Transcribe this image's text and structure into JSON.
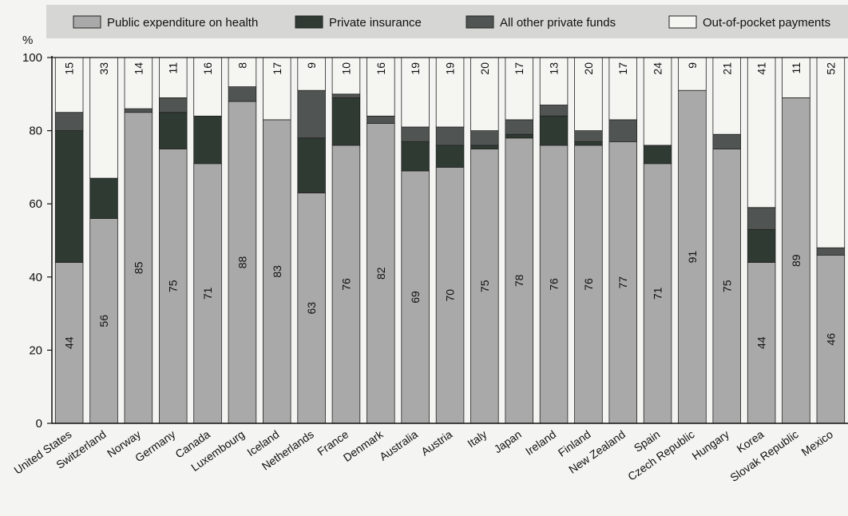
{
  "chart_data": {
    "type": "bar",
    "stacked": true,
    "ylabel": "%",
    "ylim": [
      0,
      100
    ],
    "yticks": [
      0,
      20,
      40,
      60,
      80,
      100
    ],
    "grid": false,
    "legend_position": "top",
    "categories": [
      "United States",
      "Switzerland",
      "Norway",
      "Germany",
      "Canada",
      "Luxembourg",
      "Iceland",
      "Netherlands",
      "France",
      "Denmark",
      "Australia",
      "Austria",
      "Italy",
      "Japan",
      "Ireland",
      "Finland",
      "New Zealand",
      "Spain",
      "Czech Republic",
      "Hungary",
      "Korea",
      "Slovak Republic",
      "Mexico"
    ],
    "series": [
      {
        "name": "Public expenditure on health",
        "color": "#a9a9a9",
        "values": [
          44,
          56,
          85,
          75,
          71,
          88,
          83,
          63,
          76,
          82,
          69,
          70,
          75,
          78,
          76,
          76,
          77,
          71,
          91,
          75,
          44,
          89,
          46
        ]
      },
      {
        "name": "Private insurance",
        "color": "#2f3a33",
        "values": [
          36,
          11,
          0,
          10,
          13,
          0,
          0,
          15,
          13,
          0,
          8,
          6,
          1,
          1,
          8,
          1,
          0,
          5,
          0,
          0,
          9,
          0,
          0
        ]
      },
      {
        "name": "All other private funds",
        "color": "#505553",
        "values": [
          5,
          0,
          1,
          4,
          0,
          4,
          0,
          13,
          1,
          2,
          4,
          5,
          4,
          4,
          3,
          3,
          6,
          0,
          0,
          4,
          6,
          0,
          2
        ]
      },
      {
        "name": "Out-of-pocket payments",
        "color": "#f5f5f2",
        "values": [
          15,
          33,
          14,
          11,
          16,
          8,
          17,
          9,
          10,
          16,
          19,
          19,
          20,
          17,
          13,
          20,
          17,
          24,
          9,
          21,
          41,
          11,
          52
        ]
      }
    ],
    "public_labels": [
      "44",
      "56",
      "85",
      "75",
      "71",
      "88",
      "83",
      "63",
      "76",
      "82",
      "69",
      "70",
      "75",
      "78",
      "76",
      "76",
      "77",
      "71",
      "91",
      "75",
      "44",
      "89",
      "46"
    ],
    "oop_labels": [
      "15",
      "33",
      "14",
      "11",
      "16",
      "8",
      "17",
      "9",
      "10",
      "16",
      "19",
      "19",
      "20",
      "17",
      "13",
      "20",
      "17",
      "24",
      "9",
      "21",
      "41",
      "11",
      "52"
    ]
  }
}
